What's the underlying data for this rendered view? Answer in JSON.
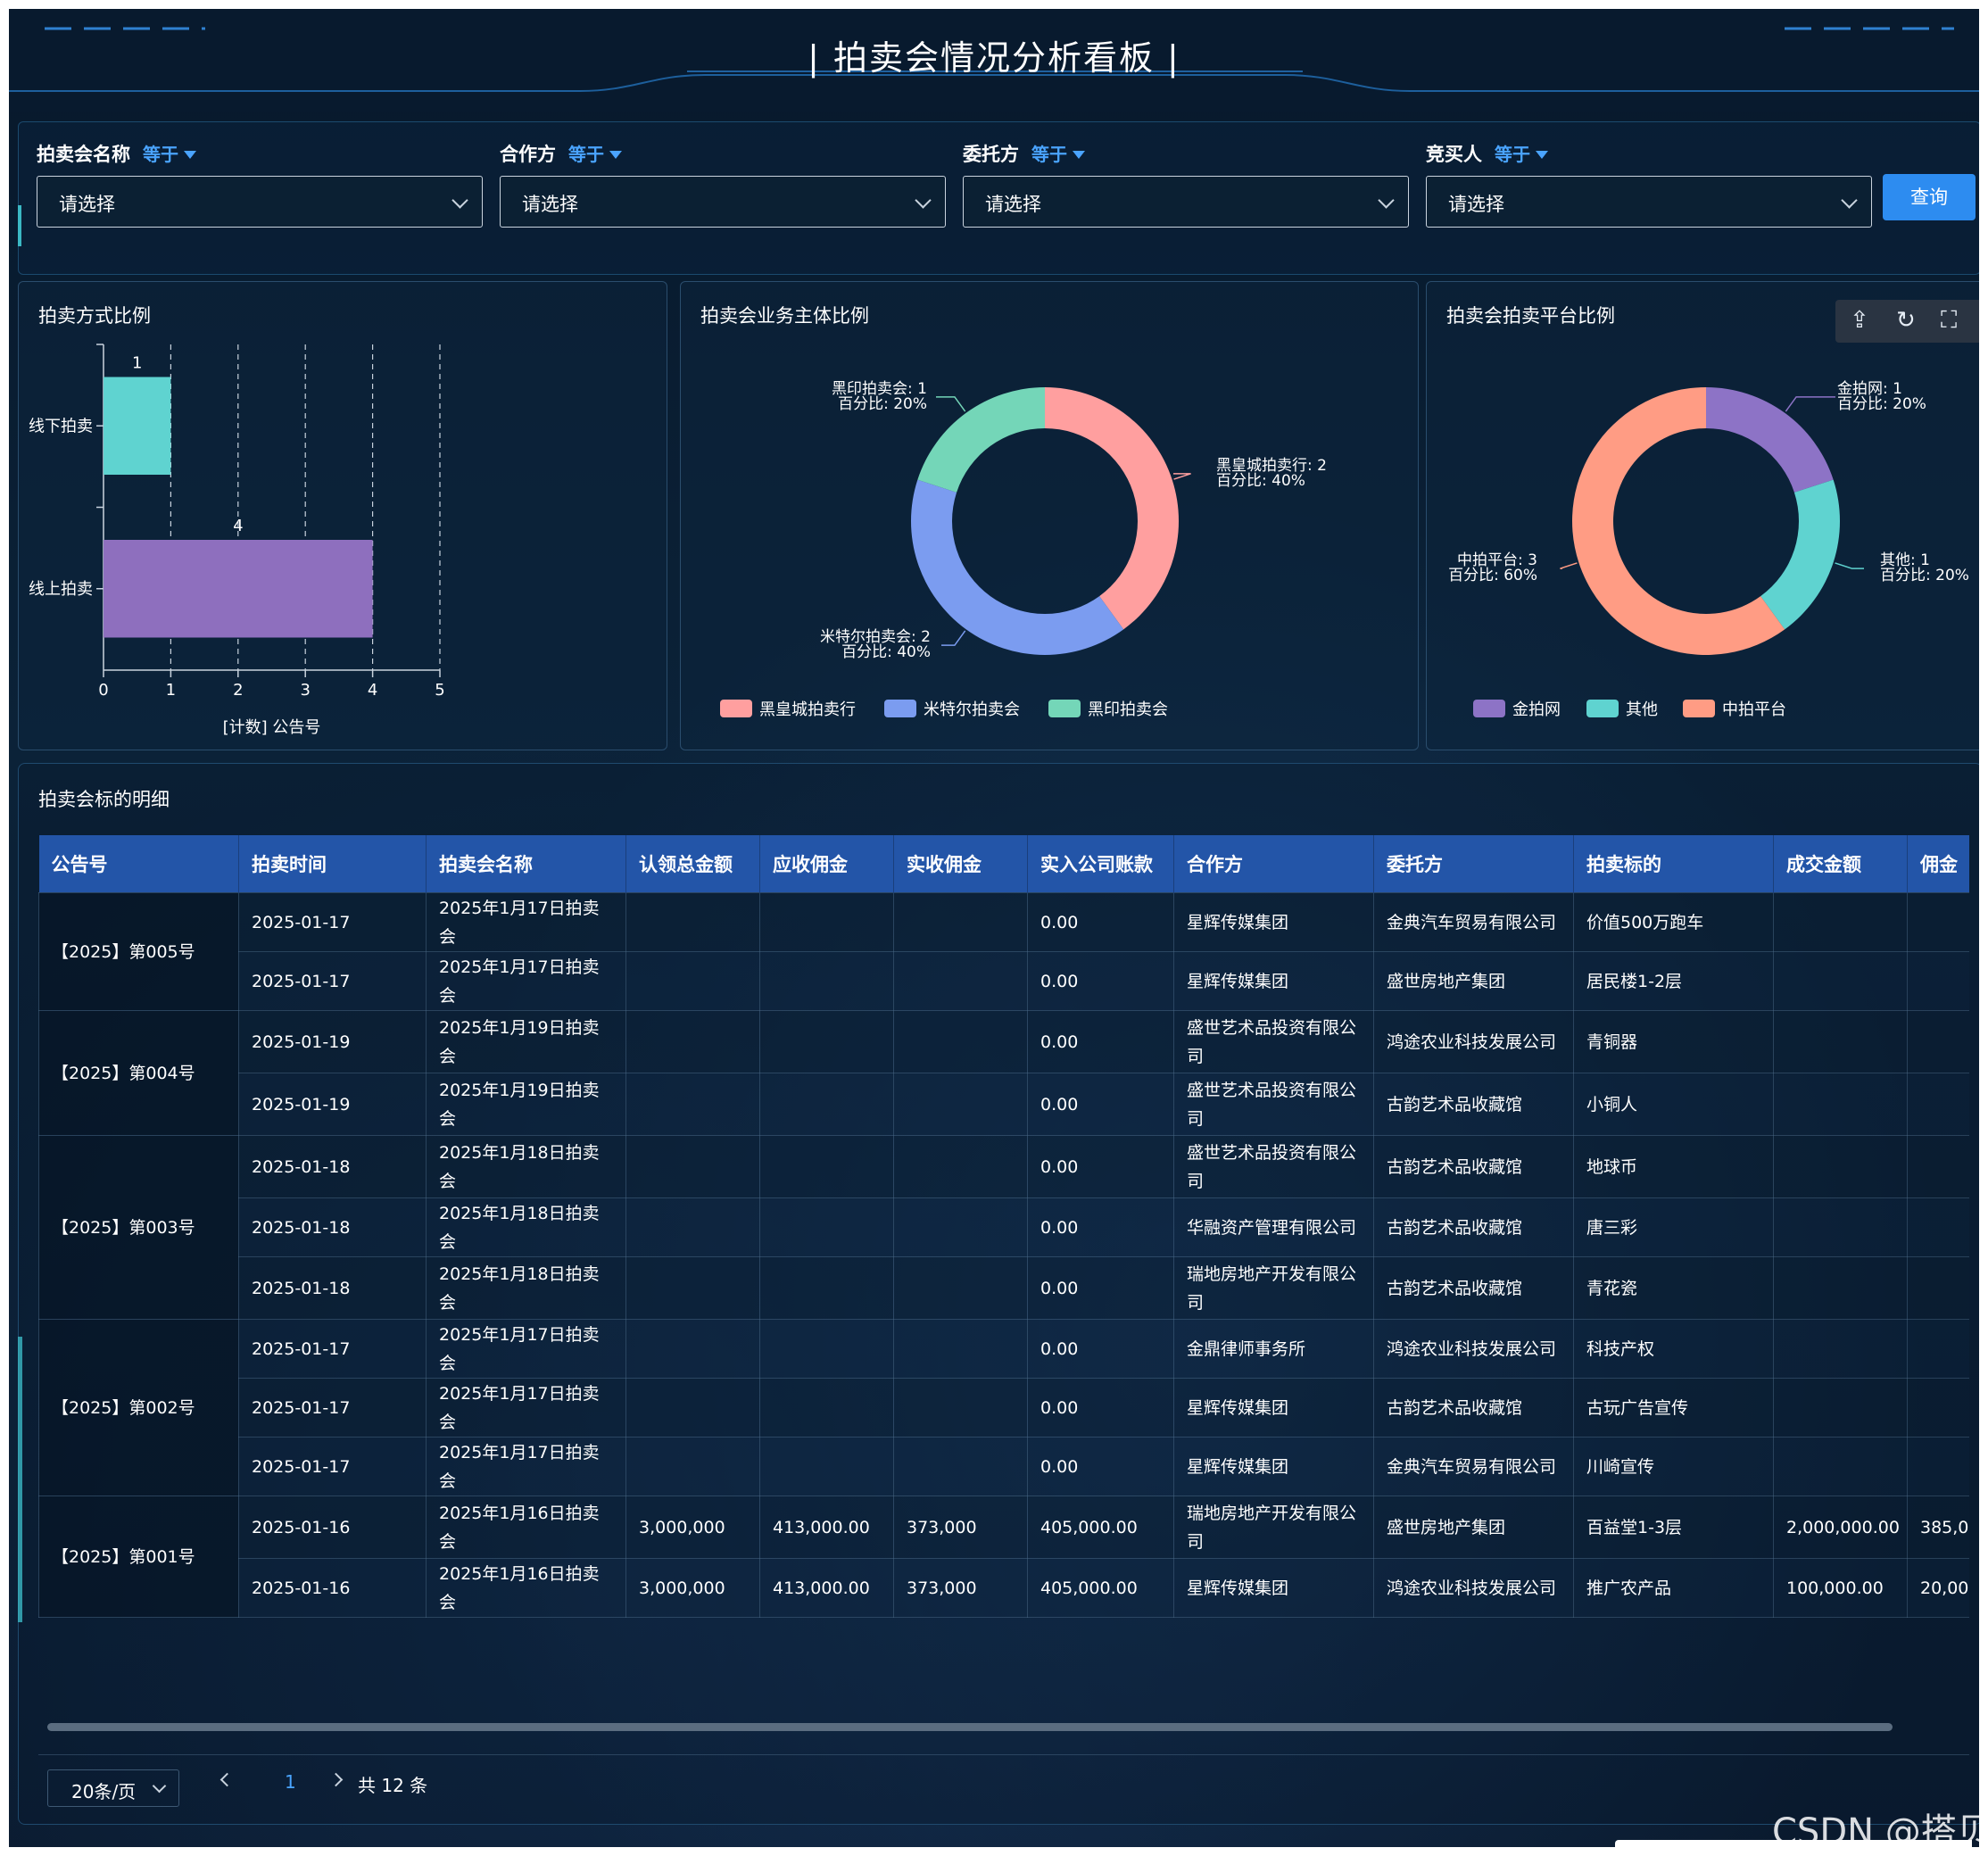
{
  "title": "拍卖会情况分析看板",
  "filters": [
    {
      "label": "拍卖会名称",
      "op": "等于",
      "placeholder": "请选择"
    },
    {
      "label": "合作方",
      "op": "等于",
      "placeholder": "请选择"
    },
    {
      "label": "委托方",
      "op": "等于",
      "placeholder": "请选择"
    },
    {
      "label": "竞买人",
      "op": "等于",
      "placeholder": "请选择"
    }
  ],
  "query_button": "查询",
  "chart_data": [
    {
      "type": "bar",
      "orientation": "horizontal",
      "title": "拍卖方式比例",
      "categories": [
        "线下拍卖",
        "线上拍卖"
      ],
      "values": [
        1,
        4
      ],
      "colors": [
        "#5fd3d0",
        "#8e6fbe"
      ],
      "xlabel": "[计数] 公告号",
      "xlim": [
        0,
        5
      ],
      "xticks": [
        "0",
        "1",
        "2",
        "3",
        "4",
        "5"
      ],
      "data_labels": [
        "1",
        "4"
      ],
      "grid": "dashed vertical"
    },
    {
      "type": "pie",
      "variant": "donut",
      "title": "拍卖会业务主体比例",
      "labels": [
        "黑皇城拍卖行",
        "米特尔拍卖会",
        "黑印拍卖会"
      ],
      "values": [
        2,
        2,
        1
      ],
      "percents": [
        "40%",
        "40%",
        "20%"
      ],
      "colors": [
        "#ff9f9f",
        "#7b9cf0",
        "#74d6b8"
      ],
      "annotations": [
        {
          "name": "黑皇城拍卖行: 2",
          "pct": "百分比: 40%"
        },
        {
          "name": "米特尔拍卖会: 2",
          "pct": "百分比: 40%"
        },
        {
          "name": "黑印拍卖会: 1",
          "pct": "百分比: 20%"
        }
      ],
      "legend": "bottom"
    },
    {
      "type": "pie",
      "variant": "donut",
      "title": "拍卖会拍卖平台比例",
      "labels": [
        "金拍网",
        "其他",
        "中拍平台"
      ],
      "values": [
        1,
        1,
        3
      ],
      "percents": [
        "20%",
        "20%",
        "60%"
      ],
      "colors": [
        "#8d73c6",
        "#5fd3d0",
        "#ff9c84"
      ],
      "annotations": [
        {
          "name": "金拍网: 1",
          "pct": "百分比: 20%"
        },
        {
          "name": "其他: 1",
          "pct": "百分比: 20%"
        },
        {
          "name": "中拍平台: 3",
          "pct": "百分比: 60%"
        }
      ],
      "legend": "bottom"
    }
  ],
  "chart_toolbar": [
    "export-icon",
    "refresh-icon",
    "fullscreen-icon"
  ],
  "table": {
    "title": "拍卖会标的明细",
    "columns": [
      "公告号",
      "拍卖时间",
      "拍卖会名称",
      "认领总金额",
      "应收佣金",
      "实收佣金",
      "实入公司账款",
      "合作方",
      "委托方",
      "拍卖标的",
      "成交金额",
      "佣金"
    ],
    "groups": [
      {
        "notice": "【2025】第005号",
        "rows": [
          [
            "2025-01-17",
            "2025年1月17日拍卖会",
            "",
            "",
            "",
            "0.00",
            "星辉传媒集团",
            "金典汽车贸易有限公司",
            "价值500万跑车",
            "",
            ""
          ],
          [
            "2025-01-17",
            "2025年1月17日拍卖会",
            "",
            "",
            "",
            "0.00",
            "星辉传媒集团",
            "盛世房地产集团",
            "居民楼1-2层",
            "",
            ""
          ]
        ]
      },
      {
        "notice": "【2025】第004号",
        "rows": [
          [
            "2025-01-19",
            "2025年1月19日拍卖会",
            "",
            "",
            "",
            "0.00",
            "盛世艺术品投资有限公司",
            "鸿途农业科技发展公司",
            "青铜器",
            "",
            ""
          ],
          [
            "2025-01-19",
            "2025年1月19日拍卖会",
            "",
            "",
            "",
            "0.00",
            "盛世艺术品投资有限公司",
            "古韵艺术品收藏馆",
            "小铜人",
            "",
            ""
          ]
        ]
      },
      {
        "notice": "【2025】第003号",
        "rows": [
          [
            "2025-01-18",
            "2025年1月18日拍卖会",
            "",
            "",
            "",
            "0.00",
            "盛世艺术品投资有限公司",
            "古韵艺术品收藏馆",
            "地球币",
            "",
            ""
          ],
          [
            "2025-01-18",
            "2025年1月18日拍卖会",
            "",
            "",
            "",
            "0.00",
            "华融资产管理有限公司",
            "古韵艺术品收藏馆",
            "唐三彩",
            "",
            ""
          ],
          [
            "2025-01-18",
            "2025年1月18日拍卖会",
            "",
            "",
            "",
            "0.00",
            "瑞地房地产开发有限公司",
            "古韵艺术品收藏馆",
            "青花瓷",
            "",
            ""
          ]
        ]
      },
      {
        "notice": "【2025】第002号",
        "rows": [
          [
            "2025-01-17",
            "2025年1月17日拍卖会",
            "",
            "",
            "",
            "0.00",
            "金鼎律师事务所",
            "鸿途农业科技发展公司",
            "科技产权",
            "",
            ""
          ],
          [
            "2025-01-17",
            "2025年1月17日拍卖会",
            "",
            "",
            "",
            "0.00",
            "星辉传媒集团",
            "古韵艺术品收藏馆",
            "古玩广告宣传",
            "",
            ""
          ],
          [
            "2025-01-17",
            "2025年1月17日拍卖会",
            "",
            "",
            "",
            "0.00",
            "星辉传媒集团",
            "金典汽车贸易有限公司",
            "川崎宣传",
            "",
            ""
          ]
        ]
      },
      {
        "notice": "【2025】第001号",
        "rows": [
          [
            "2025-01-16",
            "2025年1月16日拍卖会",
            "3,000,000",
            "413,000.00",
            "373,000",
            "405,000.00",
            "瑞地房地产开发有限公司",
            "盛世房地产集团",
            "百益堂1-3层",
            "2,000,000.00",
            "385,0"
          ],
          [
            "2025-01-16",
            "2025年1月16日拍卖会",
            "3,000,000",
            "413,000.00",
            "373,000",
            "405,000.00",
            "星辉传媒集团",
            "鸿途农业科技发展公司",
            "推广农产品",
            "100,000.00",
            "20,00"
          ]
        ]
      }
    ]
  },
  "pagination": {
    "page_size": "20条/页",
    "current_page": "1",
    "total": "共 12 条"
  },
  "watermark": "CSDN @搭贝"
}
